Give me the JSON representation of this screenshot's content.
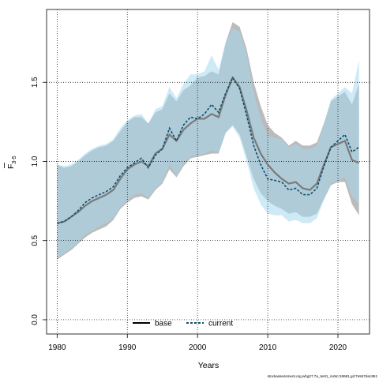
{
  "chart_data": {
    "type": "line",
    "xlabel": "Years",
    "ylabel_main": "F",
    "ylabel_sub": "3-5",
    "x_ticks": [
      1980,
      1990,
      2000,
      2010,
      2020
    ],
    "y_ticks": [
      "0.0",
      "0.5",
      "1.0",
      "1.5"
    ],
    "xlim": [
      1978.5,
      2024.5
    ],
    "ylim": [
      -0.09,
      1.96
    ],
    "grid": true,
    "legend_placement": "bottom-center",
    "caption": "stockassessment.org,whg27.7a_test1_noW,r18681,git:7e947dec851",
    "x": [
      1980,
      1981,
      1982,
      1983,
      1984,
      1985,
      1986,
      1987,
      1988,
      1989,
      1990,
      1991,
      1992,
      1993,
      1994,
      1995,
      1996,
      1997,
      1998,
      1999,
      2000,
      2001,
      2002,
      2003,
      2004,
      2005,
      2006,
      2007,
      2008,
      2009,
      2010,
      2011,
      2012,
      2013,
      2014,
      2015,
      2016,
      2017,
      2018,
      2019,
      2020,
      2021,
      2022,
      2023
    ],
    "series": [
      {
        "name": "base",
        "color": "#7a7a7a",
        "band_color": "#bbbbbb",
        "values": [
          0.61,
          0.62,
          0.65,
          0.68,
          0.72,
          0.75,
          0.77,
          0.79,
          0.82,
          0.89,
          0.95,
          0.98,
          1.0,
          0.97,
          1.05,
          1.08,
          1.17,
          1.13,
          1.2,
          1.24,
          1.27,
          1.27,
          1.3,
          1.28,
          1.42,
          1.53,
          1.47,
          1.32,
          1.15,
          1.05,
          0.98,
          0.93,
          0.89,
          0.86,
          0.87,
          0.83,
          0.82,
          0.86,
          0.98,
          1.09,
          1.11,
          1.13,
          1.01,
          0.99
        ],
        "lower": [
          0.38,
          0.41,
          0.44,
          0.48,
          0.52,
          0.55,
          0.57,
          0.59,
          0.63,
          0.7,
          0.74,
          0.77,
          0.78,
          0.76,
          0.82,
          0.86,
          0.95,
          0.9,
          0.97,
          1.02,
          1.03,
          1.04,
          1.05,
          1.05,
          1.18,
          1.23,
          1.17,
          1.03,
          0.89,
          0.8,
          0.75,
          0.72,
          0.7,
          0.67,
          0.68,
          0.65,
          0.65,
          0.67,
          0.76,
          0.85,
          0.87,
          0.87,
          0.73,
          0.66
        ],
        "upper": [
          0.98,
          0.96,
          0.97,
          1.0,
          1.04,
          1.07,
          1.09,
          1.1,
          1.13,
          1.19,
          1.25,
          1.28,
          1.28,
          1.24,
          1.31,
          1.33,
          1.43,
          1.38,
          1.45,
          1.48,
          1.53,
          1.54,
          1.57,
          1.55,
          1.75,
          1.88,
          1.85,
          1.71,
          1.5,
          1.35,
          1.23,
          1.18,
          1.15,
          1.1,
          1.13,
          1.1,
          1.1,
          1.12,
          1.24,
          1.38,
          1.41,
          1.44,
          1.36,
          1.49
        ]
      },
      {
        "name": "current",
        "color": "#0d4e6e",
        "band_color": "#a6d8ef",
        "values": [
          0.61,
          0.62,
          0.65,
          0.69,
          0.74,
          0.77,
          0.79,
          0.81,
          0.84,
          0.91,
          0.96,
          0.99,
          1.02,
          0.96,
          1.04,
          1.08,
          1.21,
          1.13,
          1.23,
          1.28,
          1.27,
          1.3,
          1.36,
          1.31,
          1.43,
          1.53,
          1.46,
          1.29,
          1.1,
          0.98,
          0.89,
          0.88,
          0.87,
          0.82,
          0.83,
          0.79,
          0.79,
          0.83,
          0.97,
          1.09,
          1.13,
          1.17,
          1.06,
          1.09
        ],
        "lower": [
          0.39,
          0.42,
          0.45,
          0.49,
          0.54,
          0.56,
          0.59,
          0.61,
          0.64,
          0.71,
          0.75,
          0.79,
          0.8,
          0.77,
          0.83,
          0.87,
          0.98,
          0.91,
          0.99,
          1.03,
          1.04,
          1.05,
          1.07,
          1.06,
          1.18,
          1.22,
          1.15,
          1.0,
          0.83,
          0.73,
          0.67,
          0.66,
          0.66,
          0.62,
          0.63,
          0.61,
          0.61,
          0.64,
          0.76,
          0.86,
          0.88,
          0.9,
          0.78,
          0.73
        ],
        "upper": [
          0.98,
          0.97,
          0.98,
          1.01,
          1.05,
          1.08,
          1.1,
          1.11,
          1.14,
          1.21,
          1.26,
          1.29,
          1.3,
          1.24,
          1.33,
          1.35,
          1.47,
          1.4,
          1.49,
          1.55,
          1.55,
          1.57,
          1.67,
          1.58,
          1.75,
          1.84,
          1.82,
          1.68,
          1.44,
          1.27,
          1.16,
          1.15,
          1.14,
          1.09,
          1.11,
          1.08,
          1.08,
          1.1,
          1.23,
          1.39,
          1.43,
          1.47,
          1.43,
          1.64
        ]
      }
    ]
  }
}
